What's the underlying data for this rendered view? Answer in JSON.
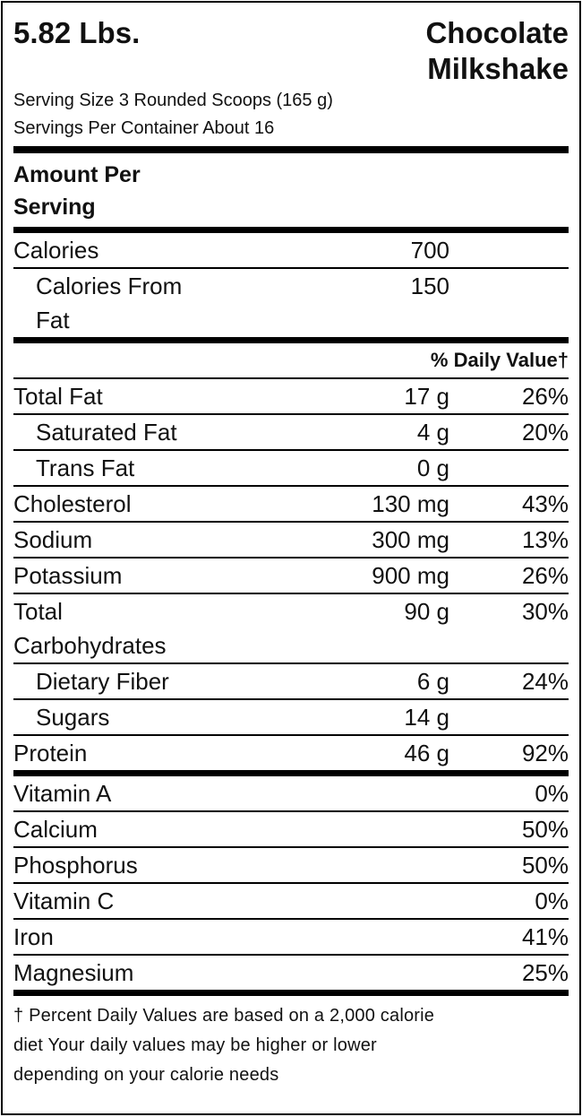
{
  "header": {
    "weight": "5.82 Lbs.",
    "product_line1": "Chocolate",
    "product_line2": "Milkshake"
  },
  "serving": {
    "size": "Serving Size 3 Rounded Scoops (165 g)",
    "per_container": "Servings Per Container About 16"
  },
  "amount_per_serving": {
    "line1": "Amount Per",
    "line2": "Serving"
  },
  "calories": {
    "label": "Calories",
    "value": "700",
    "from_fat_line1": "Calories From",
    "from_fat_line2": "Fat",
    "from_fat_value": "150"
  },
  "daily_value_header": "% Daily Value†",
  "nutrients": [
    {
      "name": "Total Fat",
      "amount": "17 g",
      "dv": "26%"
    },
    {
      "name": "Saturated Fat",
      "amount": "4 g",
      "dv": "20%"
    },
    {
      "name": "Trans Fat",
      "amount": "0 g",
      "dv": ""
    },
    {
      "name": "Cholesterol",
      "amount": "130 mg",
      "dv": "43%"
    },
    {
      "name": "Sodium",
      "amount": "300 mg",
      "dv": "13%"
    },
    {
      "name": "Potassium",
      "amount": "900 mg",
      "dv": "26%"
    },
    {
      "name_line1": "Total",
      "name_line2": "Carbohydrates",
      "amount": "90 g",
      "dv": "30%"
    },
    {
      "name": "Dietary Fiber",
      "amount": "6 g",
      "dv": "24%"
    },
    {
      "name": "Sugars",
      "amount": "14 g",
      "dv": ""
    },
    {
      "name": "Protein",
      "amount": "46 g",
      "dv": "92%"
    }
  ],
  "vitamins": [
    {
      "name": "Vitamin A",
      "dv": "0%"
    },
    {
      "name": "Calcium",
      "dv": "50%"
    },
    {
      "name": "Phosphorus",
      "dv": "50%"
    },
    {
      "name": "Vitamin C",
      "dv": "0%"
    },
    {
      "name": "Iron",
      "dv": "41%"
    },
    {
      "name": "Magnesium",
      "dv": "25%"
    }
  ],
  "footnote": {
    "line1": "† Percent Daily Values are based on a 2,000 calorie",
    "line2": "diet Your daily values may be higher or lower",
    "line3": "depending on your calorie needs"
  }
}
